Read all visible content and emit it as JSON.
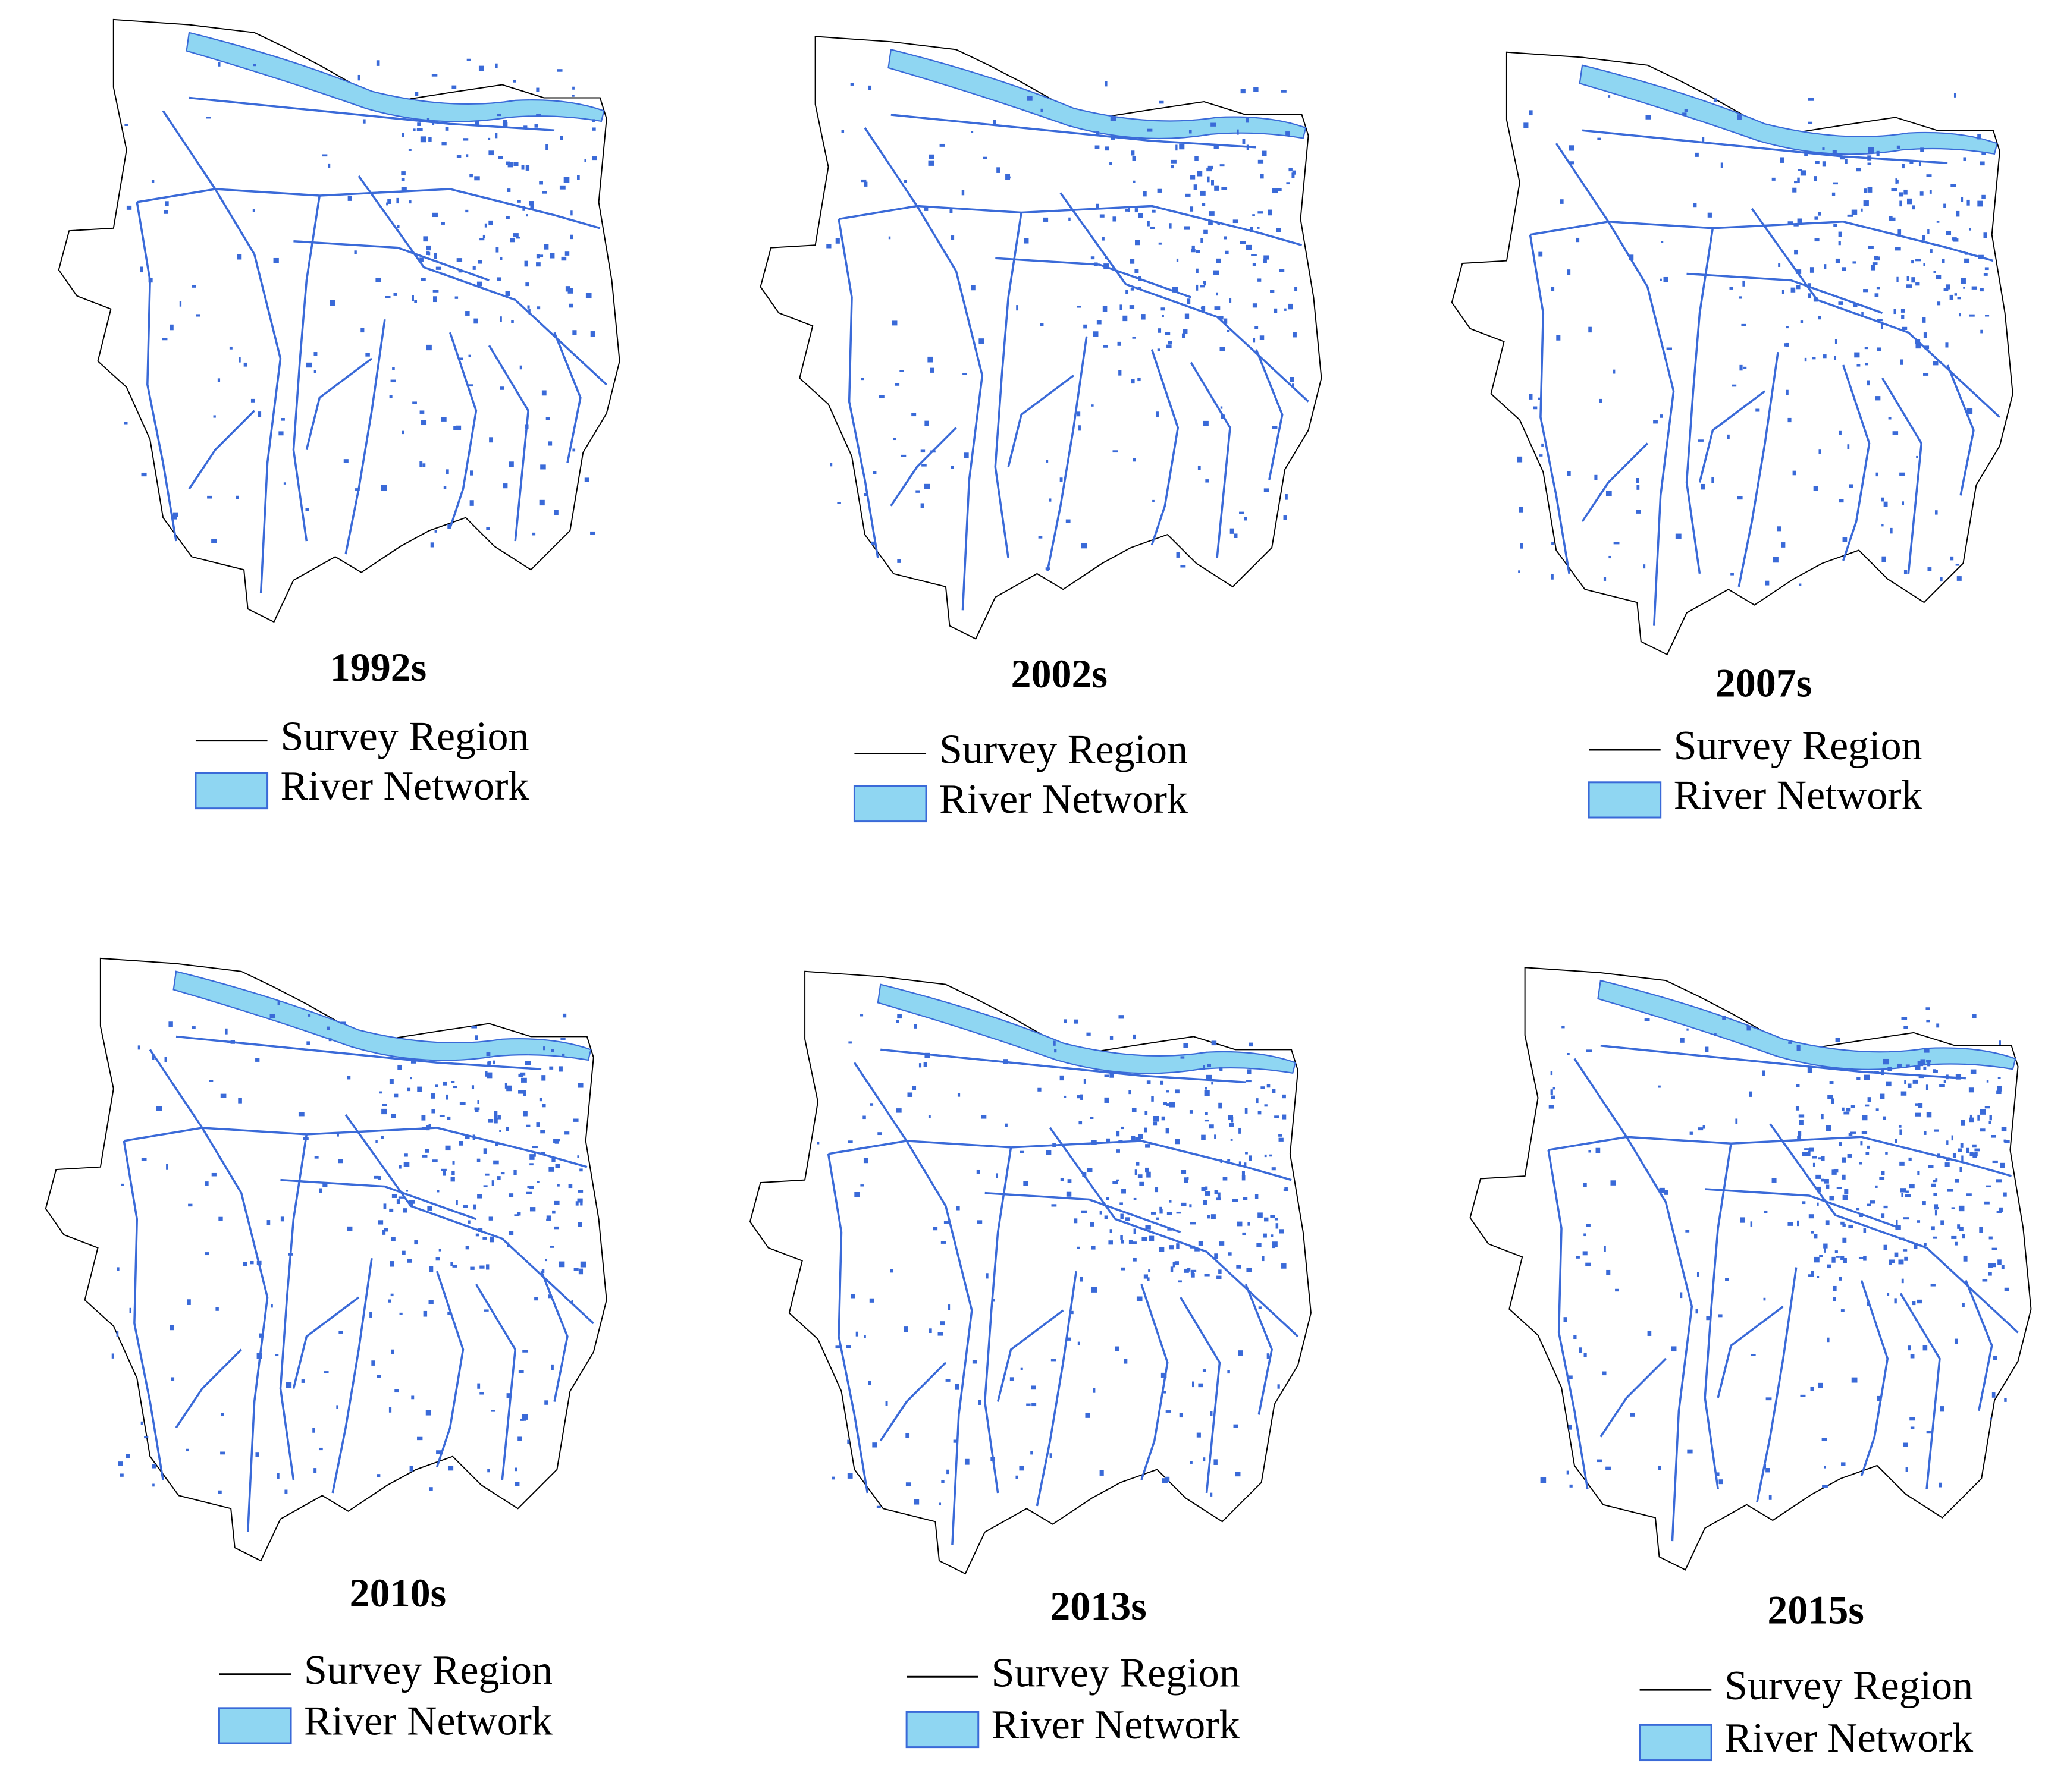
{
  "panels": [
    {
      "title": "1992s",
      "legend": [
        "Survey Region",
        "River Network"
      ]
    },
    {
      "title": "2002s",
      "legend": [
        "Survey Region",
        "River Network"
      ]
    },
    {
      "title": "2007s",
      "legend": [
        "Survey Region",
        "River Network"
      ]
    },
    {
      "title": "2010s",
      "legend": [
        "Survey Region",
        "River Network"
      ]
    },
    {
      "title": "2013s",
      "legend": [
        "Survey Region",
        "River Network"
      ]
    },
    {
      "title": "2015s",
      "legend": [
        "Survey Region",
        "River Network"
      ]
    }
  ]
}
